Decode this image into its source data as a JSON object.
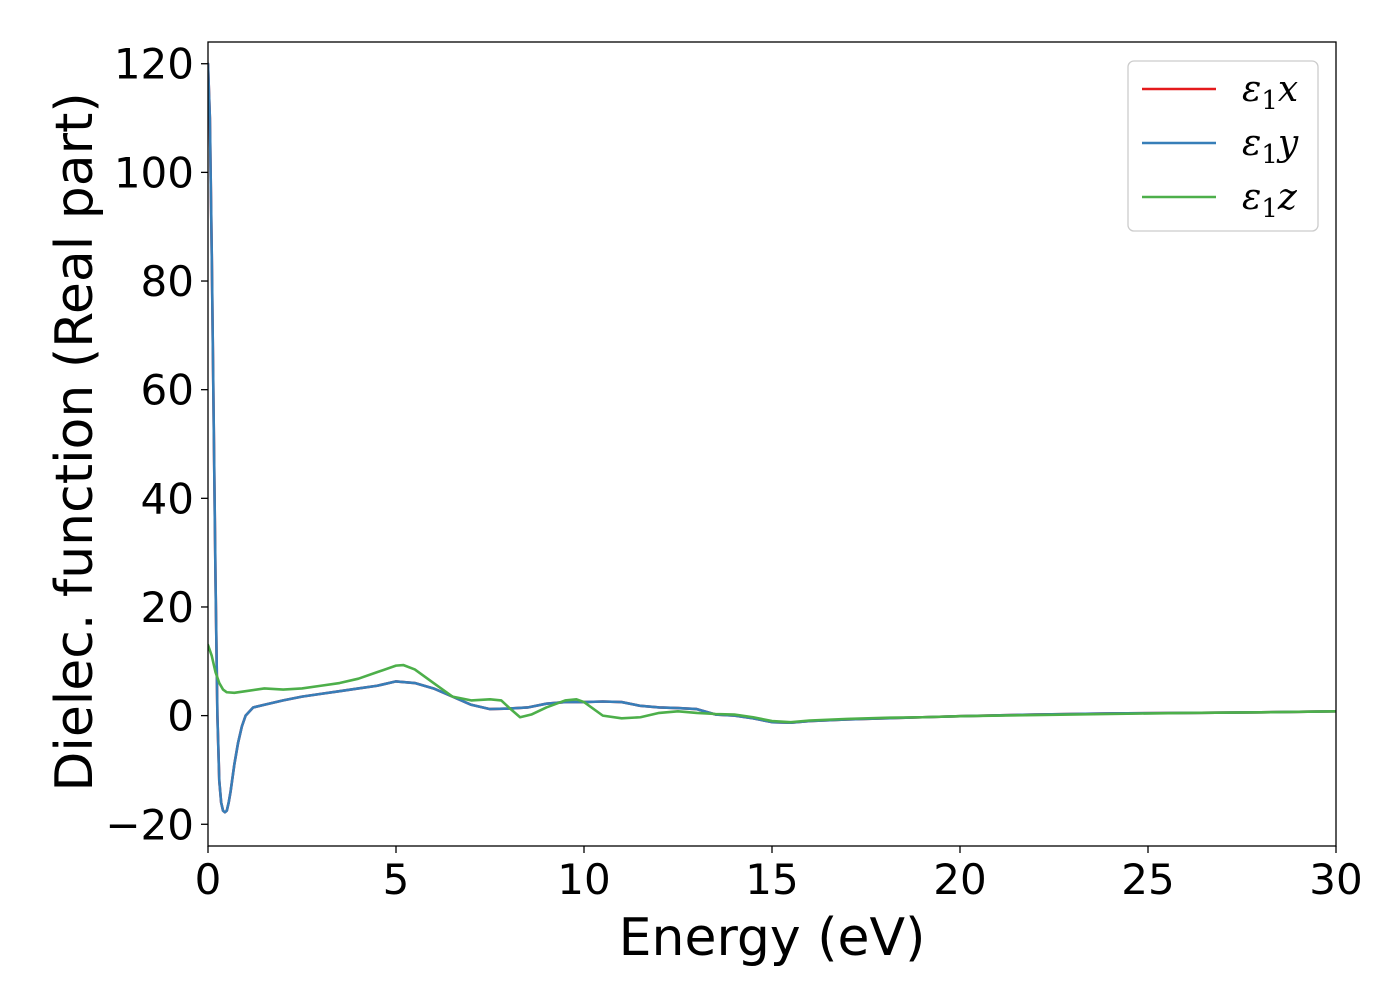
{
  "chart_data": {
    "type": "line",
    "title": "",
    "xlabel": "Energy (eV)",
    "ylabel": "Dielec. function (Real part)",
    "xlim": [
      0,
      30
    ],
    "ylim": [
      -24,
      124
    ],
    "xticks": [
      0,
      5,
      10,
      15,
      20,
      25,
      30
    ],
    "xtick_labels": [
      "0",
      "5",
      "10",
      "15",
      "20",
      "25",
      "30"
    ],
    "yticks": [
      -20,
      0,
      20,
      40,
      60,
      80,
      100,
      120
    ],
    "ytick_labels": [
      "−20",
      "0",
      "20",
      "40",
      "60",
      "80",
      "100",
      "120"
    ],
    "grid": false,
    "legend": {
      "position": "top-right"
    },
    "series": [
      {
        "name": "ε₁x",
        "legend_base": "ε",
        "legend_sub": "1",
        "legend_var": "x",
        "color": "#e41a1c",
        "x": [
          0,
          0.05,
          0.1,
          0.15,
          0.2,
          0.25,
          0.3,
          0.35,
          0.4,
          0.45,
          0.5,
          0.55,
          0.6,
          0.7,
          0.8,
          0.9,
          1.0,
          1.2,
          1.5,
          2.0,
          2.5,
          3.0,
          3.5,
          4.0,
          4.5,
          5.0,
          5.5,
          6.0,
          6.5,
          7.0,
          7.5,
          8.0,
          8.5,
          9.0,
          9.5,
          10.0,
          10.5,
          11.0,
          11.5,
          12.0,
          12.5,
          13.0,
          13.5,
          14.0,
          14.5,
          15.0,
          15.5,
          16.0,
          17.0,
          18.0,
          19.0,
          20.0,
          22.0,
          24.0,
          26.0,
          28.0,
          30.0
        ],
        "y": [
          120,
          110,
          85,
          55,
          25,
          0,
          -12,
          -16,
          -17.5,
          -17.8,
          -17.5,
          -16,
          -14,
          -9,
          -5,
          -2,
          0,
          1.5,
          2,
          2.8,
          3.5,
          4,
          4.5,
          5,
          5.5,
          6.3,
          6,
          5,
          3.5,
          2,
          1.2,
          1.3,
          1.5,
          2.2,
          2.5,
          2.5,
          2.6,
          2.5,
          1.8,
          1.5,
          1.4,
          1.2,
          0.2,
          0,
          -0.5,
          -1.2,
          -1.3,
          -1,
          -0.7,
          -0.5,
          -0.3,
          -0.1,
          0.2,
          0.4,
          0.5,
          0.6,
          0.8
        ]
      },
      {
        "name": "ε₁y",
        "legend_base": "ε",
        "legend_sub": "1",
        "legend_var": "y",
        "color": "#377eb8",
        "x": [
          0,
          0.05,
          0.1,
          0.15,
          0.2,
          0.25,
          0.3,
          0.35,
          0.4,
          0.45,
          0.5,
          0.55,
          0.6,
          0.7,
          0.8,
          0.9,
          1.0,
          1.2,
          1.5,
          2.0,
          2.5,
          3.0,
          3.5,
          4.0,
          4.5,
          5.0,
          5.5,
          6.0,
          6.5,
          7.0,
          7.5,
          8.0,
          8.5,
          9.0,
          9.5,
          10.0,
          10.5,
          11.0,
          11.5,
          12.0,
          12.5,
          13.0,
          13.5,
          14.0,
          14.5,
          15.0,
          15.5,
          16.0,
          17.0,
          18.0,
          19.0,
          20.0,
          22.0,
          24.0,
          26.0,
          28.0,
          30.0
        ],
        "y": [
          120,
          110,
          85,
          55,
          25,
          0,
          -12,
          -16,
          -17.5,
          -17.8,
          -17.5,
          -16,
          -14,
          -9,
          -5,
          -2,
          0,
          1.5,
          2,
          2.8,
          3.5,
          4,
          4.5,
          5,
          5.5,
          6.3,
          6,
          5,
          3.5,
          2,
          1.2,
          1.3,
          1.5,
          2.2,
          2.5,
          2.5,
          2.6,
          2.5,
          1.8,
          1.5,
          1.4,
          1.2,
          0.2,
          0,
          -0.5,
          -1.2,
          -1.3,
          -1,
          -0.7,
          -0.5,
          -0.3,
          -0.1,
          0.2,
          0.4,
          0.5,
          0.6,
          0.8
        ]
      },
      {
        "name": "ε₁z",
        "legend_base": "ε",
        "legend_sub": "1",
        "legend_var": "z",
        "color": "#4daf4a",
        "x": [
          0,
          0.1,
          0.2,
          0.3,
          0.4,
          0.5,
          0.7,
          1.0,
          1.5,
          2.0,
          2.5,
          3.0,
          3.5,
          4.0,
          4.5,
          5.0,
          5.2,
          5.5,
          6.0,
          6.5,
          7.0,
          7.5,
          7.8,
          8.0,
          8.3,
          8.6,
          9.0,
          9.5,
          9.8,
          10.0,
          10.5,
          11.0,
          11.5,
          12.0,
          12.5,
          13.0,
          13.5,
          14.0,
          14.5,
          15.0,
          15.5,
          16.0,
          17.0,
          18.0,
          19.0,
          20.0,
          22.0,
          24.0,
          26.0,
          28.0,
          30.0
        ],
        "y": [
          13,
          11,
          8,
          6,
          4.8,
          4.3,
          4.2,
          4.5,
          5,
          4.8,
          5,
          5.5,
          6,
          6.8,
          8,
          9.2,
          9.3,
          8.5,
          6,
          3.5,
          2.8,
          3,
          2.8,
          1.5,
          -0.3,
          0.2,
          1.5,
          2.8,
          3,
          2.5,
          0,
          -0.5,
          -0.3,
          0.5,
          0.8,
          0.5,
          0.3,
          0.2,
          -0.3,
          -1,
          -1.2,
          -0.9,
          -0.6,
          -0.4,
          -0.3,
          -0.1,
          0.1,
          0.3,
          0.5,
          0.6,
          0.8
        ]
      }
    ]
  }
}
